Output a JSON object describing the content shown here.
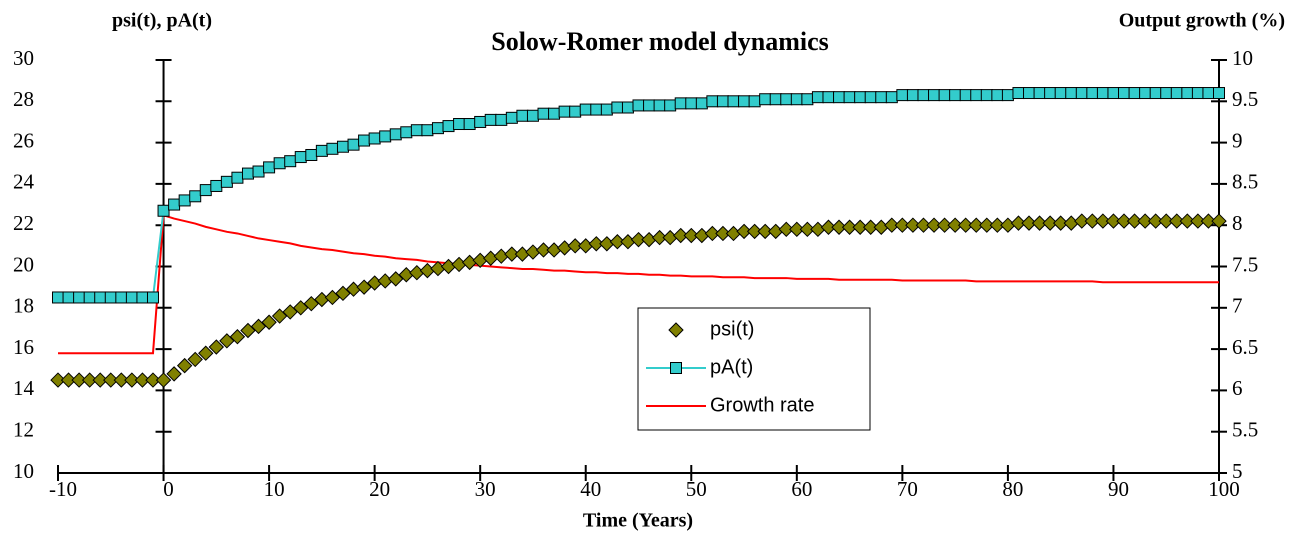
{
  "chart_data": {
    "type": "line",
    "title": "Solow-Romer model dynamics",
    "x_label": "Time (Years)",
    "y_label": "psi(t), pA(t)",
    "y2_label": "Output growth (%)",
    "x": [
      -10,
      -9,
      -8,
      -7,
      -6,
      -5,
      -4,
      -3,
      -2,
      -1,
      0,
      1,
      2,
      3,
      4,
      5,
      6,
      7,
      8,
      9,
      10,
      11,
      12,
      13,
      14,
      15,
      16,
      17,
      18,
      19,
      20,
      21,
      22,
      23,
      24,
      25,
      26,
      27,
      28,
      29,
      30,
      31,
      32,
      33,
      34,
      35,
      36,
      37,
      38,
      39,
      40,
      41,
      42,
      43,
      44,
      45,
      46,
      47,
      48,
      49,
      50,
      51,
      52,
      53,
      54,
      55,
      56,
      57,
      58,
      59,
      60,
      61,
      62,
      63,
      64,
      65,
      66,
      67,
      68,
      69,
      70,
      71,
      72,
      73,
      74,
      75,
      76,
      77,
      78,
      79,
      80,
      81,
      82,
      83,
      84,
      85,
      86,
      87,
      88,
      89,
      90,
      91,
      92,
      93,
      94,
      95,
      96,
      97,
      98,
      99,
      100
    ],
    "series": [
      {
        "name": "psi(t)",
        "color": "#808000",
        "marker": "diamond",
        "line": false,
        "values": [
          14.5,
          14.5,
          14.5,
          14.5,
          14.5,
          14.5,
          14.5,
          14.5,
          14.5,
          14.5,
          14.5,
          14.8,
          15.2,
          15.5,
          15.8,
          16.1,
          16.4,
          16.6,
          16.9,
          17.1,
          17.3,
          17.6,
          17.8,
          18.0,
          18.2,
          18.4,
          18.5,
          18.7,
          18.9,
          19.0,
          19.2,
          19.3,
          19.4,
          19.6,
          19.7,
          19.8,
          19.9,
          20.0,
          20.1,
          20.2,
          20.3,
          20.4,
          20.5,
          20.6,
          20.6,
          20.7,
          20.8,
          20.8,
          20.9,
          21.0,
          21.0,
          21.1,
          21.1,
          21.2,
          21.2,
          21.3,
          21.3,
          21.4,
          21.4,
          21.5,
          21.5,
          21.5,
          21.6,
          21.6,
          21.6,
          21.7,
          21.7,
          21.7,
          21.7,
          21.8,
          21.8,
          21.8,
          21.8,
          21.9,
          21.9,
          21.9,
          21.9,
          21.9,
          21.9,
          22.0,
          22.0,
          22.0,
          22.0,
          22.0,
          22.0,
          22.0,
          22.0,
          22.0,
          22.0,
          22.0,
          22.0,
          22.1,
          22.1,
          22.1,
          22.1,
          22.1,
          22.1,
          22.2,
          22.2,
          22.2,
          22.2,
          22.2,
          22.2,
          22.2,
          22.2,
          22.2,
          22.2,
          22.2,
          22.2,
          22.2,
          22.2
        ]
      },
      {
        "name": "pA(t)",
        "color": "#33cccc",
        "marker": "square",
        "line": true,
        "values": [
          18.5,
          18.5,
          18.5,
          18.5,
          18.5,
          18.5,
          18.5,
          18.5,
          18.5,
          18.5,
          22.7,
          23.0,
          23.2,
          23.4,
          23.7,
          23.9,
          24.1,
          24.3,
          24.5,
          24.6,
          24.8,
          25.0,
          25.1,
          25.3,
          25.4,
          25.6,
          25.7,
          25.8,
          25.9,
          26.1,
          26.2,
          26.3,
          26.4,
          26.5,
          26.6,
          26.6,
          26.7,
          26.8,
          26.9,
          26.9,
          27.0,
          27.1,
          27.1,
          27.2,
          27.3,
          27.3,
          27.4,
          27.4,
          27.5,
          27.5,
          27.6,
          27.6,
          27.6,
          27.7,
          27.7,
          27.8,
          27.8,
          27.8,
          27.8,
          27.9,
          27.9,
          27.9,
          28.0,
          28.0,
          28.0,
          28.0,
          28.0,
          28.1,
          28.1,
          28.1,
          28.1,
          28.1,
          28.2,
          28.2,
          28.2,
          28.2,
          28.2,
          28.2,
          28.2,
          28.2,
          28.3,
          28.3,
          28.3,
          28.3,
          28.3,
          28.3,
          28.3,
          28.3,
          28.3,
          28.3,
          28.3,
          28.4,
          28.4,
          28.4,
          28.4,
          28.4,
          28.4,
          28.4,
          28.4,
          28.4,
          28.4,
          28.4,
          28.4,
          28.4,
          28.4,
          28.4,
          28.4,
          28.4,
          28.4,
          28.4,
          28.4
        ]
      },
      {
        "name": "Growth rate",
        "color": "#ff0000",
        "marker": "none",
        "line": true,
        "axis": "y2",
        "values": [
          6.45,
          6.45,
          6.45,
          6.45,
          6.45,
          6.45,
          6.45,
          6.45,
          6.45,
          6.45,
          8.12,
          8.08,
          8.05,
          8.02,
          7.98,
          7.95,
          7.92,
          7.9,
          7.87,
          7.84,
          7.82,
          7.8,
          7.78,
          7.75,
          7.73,
          7.71,
          7.7,
          7.68,
          7.66,
          7.65,
          7.63,
          7.62,
          7.6,
          7.59,
          7.58,
          7.56,
          7.55,
          7.54,
          7.53,
          7.52,
          7.51,
          7.5,
          7.49,
          7.48,
          7.47,
          7.47,
          7.46,
          7.45,
          7.45,
          7.44,
          7.43,
          7.43,
          7.42,
          7.42,
          7.41,
          7.41,
          7.4,
          7.4,
          7.39,
          7.39,
          7.38,
          7.38,
          7.38,
          7.37,
          7.37,
          7.37,
          7.36,
          7.36,
          7.36,
          7.36,
          7.35,
          7.35,
          7.35,
          7.35,
          7.34,
          7.34,
          7.34,
          7.34,
          7.34,
          7.34,
          7.33,
          7.33,
          7.33,
          7.33,
          7.33,
          7.33,
          7.33,
          7.32,
          7.32,
          7.32,
          7.32,
          7.32,
          7.32,
          7.32,
          7.32,
          7.32,
          7.32,
          7.32,
          7.32,
          7.31,
          7.31,
          7.31,
          7.31,
          7.31,
          7.31,
          7.31,
          7.31,
          7.31,
          7.31,
          7.31,
          7.31
        ]
      }
    ],
    "xlim": [
      -10,
      100
    ],
    "xticks": [
      -10,
      0,
      10,
      20,
      30,
      40,
      50,
      60,
      70,
      80,
      90,
      100
    ],
    "ylim": [
      10,
      30
    ],
    "yticks": [
      10,
      12,
      14,
      16,
      18,
      20,
      22,
      24,
      26,
      28,
      30
    ],
    "y2lim": [
      5,
      10
    ],
    "y2ticks": [
      5,
      5.5,
      6,
      6.5,
      7,
      7.5,
      8,
      8.5,
      9,
      9.5,
      10
    ]
  }
}
